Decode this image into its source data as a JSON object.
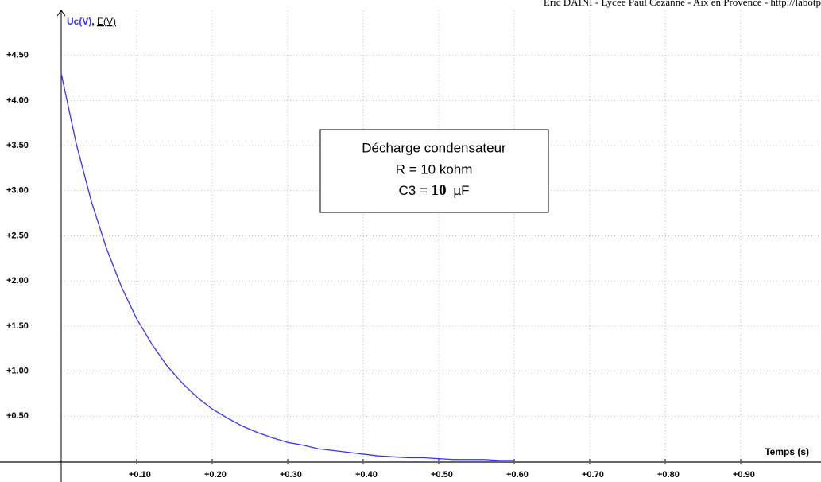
{
  "chart_data": {
    "type": "line",
    "header": "Eric DAINI - Lycée Paul Cézanne - Aix en Provence - http://labotp",
    "y_label_parts": [
      "Uc(V)",
      ", ",
      "E(V)"
    ],
    "x_label": "Temps (s)",
    "annotation_lines": [
      "Décharge condensateur",
      "R = 10 kohm"
    ],
    "annotation_c": {
      "label": "C3 =",
      "value": "10",
      "unit": "µF"
    },
    "grid": true,
    "xlim": [
      0,
      1
    ],
    "ylim": [
      0,
      5
    ],
    "xticks": [
      {
        "value": 0.1,
        "label": "+0.10"
      },
      {
        "value": 0.2,
        "label": "+0.20"
      },
      {
        "value": 0.3,
        "label": "+0.30"
      },
      {
        "value": 0.4,
        "label": "+0.40"
      },
      {
        "value": 0.5,
        "label": "+0.50"
      },
      {
        "value": 0.6,
        "label": "+0.60"
      },
      {
        "value": 0.7,
        "label": "+0.70"
      },
      {
        "value": 0.8,
        "label": "+0.80"
      },
      {
        "value": 0.9,
        "label": "+0.90"
      }
    ],
    "yticks": [
      {
        "value": 0.5,
        "label": "+0.50"
      },
      {
        "value": 1,
        "label": "+1.00"
      },
      {
        "value": 1.5,
        "label": "+1.50"
      },
      {
        "value": 2,
        "label": "+2.00"
      },
      {
        "value": 2.5,
        "label": "+2.50"
      },
      {
        "value": 3,
        "label": "+3.00"
      },
      {
        "value": 3.5,
        "label": "+3.50"
      },
      {
        "value": 4,
        "label": "+4.00"
      },
      {
        "value": 4.5,
        "label": "+4.50"
      }
    ],
    "x": [
      0,
      0.02,
      0.04,
      0.06,
      0.08,
      0.1,
      0.12,
      0.14,
      0.16,
      0.18,
      0.2,
      0.22,
      0.24,
      0.26,
      0.28,
      0.3,
      0.32,
      0.34,
      0.36,
      0.38,
      0.4,
      0.42,
      0.44,
      0.46,
      0.48,
      0.5,
      0.52,
      0.54,
      0.56,
      0.58,
      0.6
    ],
    "series": [
      {
        "name": "Uc(V)",
        "color": "#3333ff",
        "values": [
          4.3,
          3.52,
          2.88,
          2.36,
          1.93,
          1.58,
          1.3,
          1.06,
          0.87,
          0.71,
          0.58,
          0.48,
          0.39,
          0.32,
          0.26,
          0.21,
          0.18,
          0.14,
          0.12,
          0.1,
          0.08,
          0.06,
          0.05,
          0.04,
          0.04,
          0.03,
          0.02,
          0.02,
          0.02,
          0.01,
          0.01
        ]
      }
    ]
  }
}
